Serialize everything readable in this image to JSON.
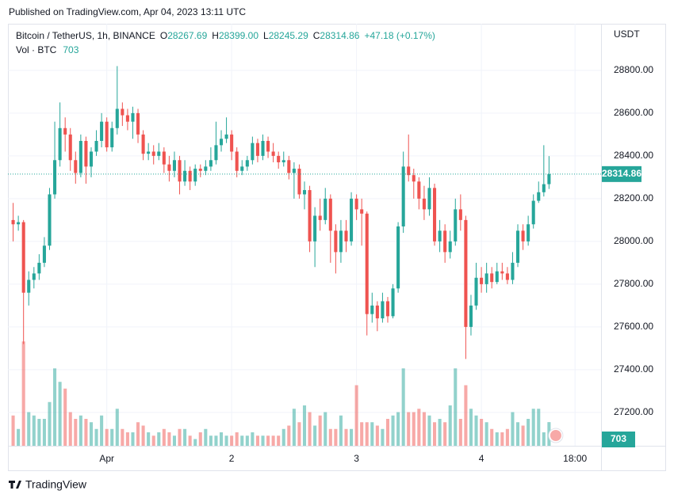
{
  "published": "Published on TradingView.com, Apr 04, 2023 13:11 UTC",
  "brand": "TradingView",
  "header": {
    "symbol": "Bitcoin / TetherUS, 1h, BINANCE",
    "o_label": "O",
    "open": "28267.69",
    "h_label": "H",
    "high": "28399.00",
    "l_label": "L",
    "low": "28245.29",
    "c_label": "C",
    "close": "28314.86",
    "change": "+47.18 (+0.17%)",
    "vol_label": "Vol · BTC"
  },
  "chart_data": {
    "type": "candlestick",
    "currency": "USDT",
    "up_color": "#26a69a",
    "down_color": "#ef5350",
    "open": [
      28100,
      28080,
      28090,
      27760,
      27820,
      27850,
      27900,
      27980,
      28220,
      28380,
      28530,
      28500,
      28380,
      28320,
      28470,
      28350,
      28420,
      28470,
      28560,
      28440,
      28530,
      28620,
      28590,
      28560,
      28600,
      28500,
      28410,
      28420,
      28400,
      28420,
      28360,
      28330,
      28380,
      28280,
      28330,
      28280,
      28340,
      28330,
      28350,
      28380,
      28450,
      28480,
      28500,
      28420,
      28330,
      28350,
      28380,
      28460,
      28400,
      28470,
      28420,
      28400,
      28370,
      28380,
      28320,
      28340,
      28220,
      28240,
      28000,
      28120,
      28100,
      28200,
      28050,
      27950,
      28050,
      28000,
      28200,
      28150,
      28130,
      27660,
      27700,
      27640,
      27720,
      27650,
      27780,
      28070,
      28350,
      28310,
      28280,
      28200,
      28150,
      28250,
      28000,
      28050,
      27950,
      28000,
      28150,
      28100,
      27600,
      27700,
      27830,
      27800,
      27850,
      27810,
      27860,
      27850,
      27820,
      27900,
      28050,
      28000,
      28080,
      28190,
      28230,
      28267.69
    ],
    "high": [
      28180,
      28120,
      28100,
      27860,
      27880,
      27940,
      28020,
      28250,
      28560,
      28650,
      28580,
      28530,
      28420,
      28500,
      28490,
      28440,
      28520,
      28600,
      28580,
      28560,
      28820,
      28650,
      28620,
      28630,
      28620,
      28520,
      28460,
      28450,
      28460,
      28440,
      28400,
      28420,
      28400,
      28380,
      28350,
      28360,
      28360,
      28380,
      28440,
      28560,
      28520,
      28580,
      28520,
      28440,
      28380,
      28400,
      28490,
      28480,
      28500,
      28490,
      28460,
      28420,
      28420,
      28400,
      28370,
      28360,
      28280,
      28260,
      28160,
      28200,
      28250,
      28220,
      28080,
      28100,
      28100,
      28230,
      28220,
      28200,
      28140,
      27760,
      27720,
      27760,
      27740,
      27800,
      28090,
      28420,
      28500,
      28340,
      28300,
      28260,
      28300,
      28270,
      28100,
      28080,
      28050,
      28200,
      28220,
      28120,
      27750,
      27900,
      27880,
      27900,
      27880,
      27900,
      27900,
      27880,
      27950,
      28080,
      28080,
      28120,
      28220,
      28280,
      28450,
      28399
    ],
    "low": [
      28000,
      28050,
      27520,
      27700,
      27780,
      27820,
      27880,
      27960,
      28200,
      28350,
      28420,
      28330,
      28270,
      28300,
      28270,
      28300,
      28400,
      28440,
      28420,
      28420,
      28500,
      28540,
      28520,
      28480,
      28460,
      28380,
      28380,
      28360,
      28380,
      28320,
      28280,
      28300,
      28220,
      28260,
      28240,
      28260,
      28300,
      28310,
      28330,
      28360,
      28420,
      28460,
      28380,
      28300,
      28310,
      28330,
      28360,
      28370,
      28380,
      28390,
      28370,
      28340,
      28350,
      28290,
      28200,
      28200,
      28150,
      27950,
      27880,
      28050,
      28080,
      27900,
      27850,
      27900,
      27950,
      27980,
      28100,
      27980,
      27560,
      27620,
      27580,
      27620,
      27620,
      27640,
      27760,
      28040,
      28280,
      28200,
      28150,
      28100,
      28120,
      27980,
      27950,
      27900,
      27920,
      27980,
      28050,
      27450,
      27560,
      27680,
      27760,
      27760,
      27780,
      27800,
      27820,
      27800,
      27800,
      27880,
      27960,
      27980,
      28060,
      28180,
      28210,
      28245.29
    ],
    "close": [
      28080,
      28090,
      27760,
      27820,
      27850,
      27900,
      27980,
      28220,
      28380,
      28530,
      28500,
      28380,
      28320,
      28470,
      28350,
      28420,
      28470,
      28560,
      28440,
      28530,
      28620,
      28590,
      28560,
      28600,
      28500,
      28410,
      28420,
      28400,
      28420,
      28360,
      28330,
      28380,
      28280,
      28330,
      28280,
      28340,
      28330,
      28350,
      28380,
      28450,
      28480,
      28500,
      28420,
      28330,
      28350,
      28380,
      28460,
      28400,
      28470,
      28420,
      28400,
      28370,
      28380,
      28320,
      28340,
      28220,
      28240,
      28000,
      28120,
      28100,
      28200,
      28050,
      27950,
      28050,
      28000,
      28200,
      28150,
      28130,
      27660,
      27700,
      27640,
      27720,
      27650,
      27780,
      28070,
      28350,
      28310,
      28280,
      28200,
      28150,
      28250,
      28000,
      28050,
      27950,
      28000,
      28150,
      28100,
      27600,
      27700,
      27830,
      27800,
      27850,
      27810,
      27860,
      27850,
      27820,
      27900,
      28050,
      28000,
      28080,
      28190,
      28230,
      28267.69,
      28314.86
    ],
    "volume": [
      900,
      500,
      3100,
      1000,
      900,
      800,
      800,
      1300,
      2300,
      1900,
      1700,
      1000,
      800,
      900,
      800,
      700,
      500,
      900,
      500,
      500,
      1100,
      500,
      400,
      400,
      700,
      600,
      400,
      300,
      400,
      500,
      400,
      300,
      500,
      500,
      300,
      200,
      400,
      500,
      300,
      300,
      400,
      300,
      300,
      400,
      300,
      300,
      400,
      300,
      300,
      300,
      300,
      300,
      500,
      600,
      1100,
      700,
      1200,
      1000,
      600,
      900,
      1000,
      500,
      500,
      900,
      500,
      500,
      1800,
      700,
      700,
      700,
      600,
      500,
      800,
      900,
      1000,
      2300,
      1000,
      1000,
      1100,
      1000,
      900,
      700,
      800,
      700,
      1200,
      2300,
      800,
      1800,
      1100,
      900,
      800,
      700,
      500,
      400,
      400,
      500,
      1000,
      700,
      600,
      800,
      1100,
      1100,
      400,
      703
    ],
    "volume_lim": [
      0,
      4000
    ],
    "xlim": [
      -1,
      113
    ],
    "xticks": [
      {
        "value": 18,
        "label": "Apr"
      },
      {
        "value": 42,
        "label": "2"
      },
      {
        "value": 66,
        "label": "3"
      },
      {
        "value": 90,
        "label": "4"
      },
      {
        "value": 108,
        "label": "18:00"
      }
    ],
    "ylim": [
      27044,
      29018
    ],
    "yticks": [
      {
        "value": 27200,
        "label": "27200.00"
      },
      {
        "value": 27400,
        "label": "27400.00"
      },
      {
        "value": 27600,
        "label": "27600.00"
      },
      {
        "value": 27800,
        "label": "27800.00"
      },
      {
        "value": 28000,
        "label": "28000.00"
      },
      {
        "value": 28200,
        "label": "28200.00"
      },
      {
        "value": 28400,
        "label": "28400.00"
      },
      {
        "value": 28600,
        "label": "28600.00"
      },
      {
        "value": 28800,
        "label": "28800.00"
      }
    ],
    "grid": true
  }
}
